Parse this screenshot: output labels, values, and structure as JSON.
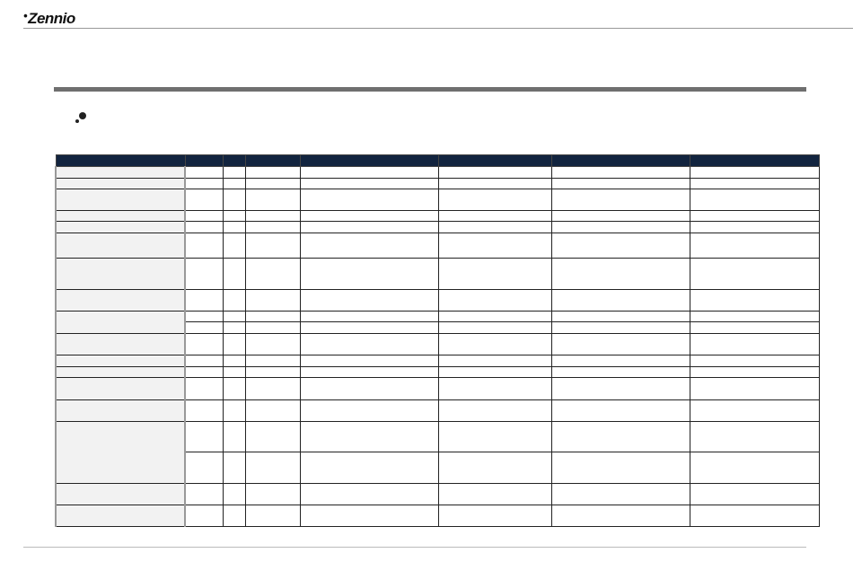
{
  "header": {
    "logo_text": "Zennio"
  },
  "table": {
    "columns": 8,
    "row_heights": [
      13,
      12,
      24,
      12,
      13,
      28,
      35,
      24,
      [
        12,
        13
      ],
      24,
      13,
      12,
      25,
      24,
      [
        34,
        35
      ],
      24,
      24
    ]
  }
}
